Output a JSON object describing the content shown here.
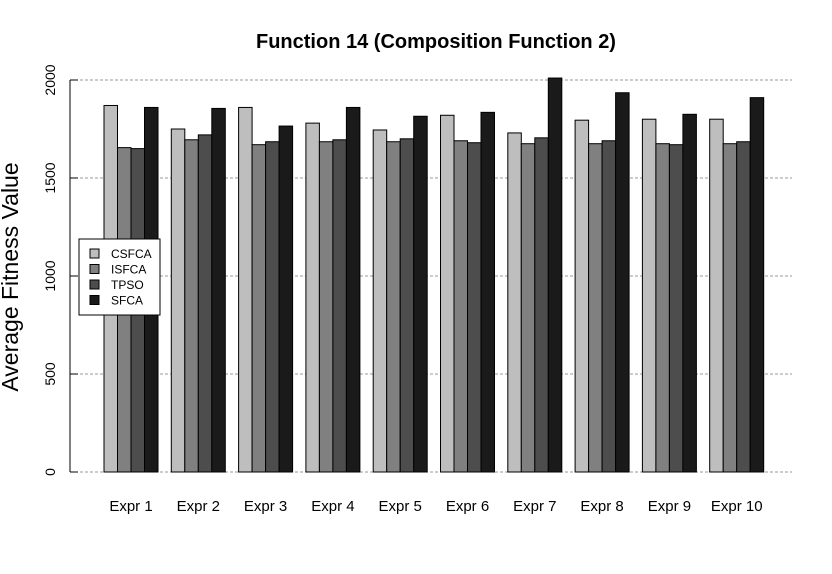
{
  "chart_data": {
    "type": "bar",
    "title": "Function 14 (Composition Function 2)",
    "xlabel": "",
    "ylabel": "Average Fitness Value",
    "ylim": [
      0,
      2000
    ],
    "yticks": [
      "0",
      "500",
      "1000",
      "1500",
      "2000"
    ],
    "grid": true,
    "legend_position": "left",
    "categories": [
      "Expr 1",
      "Expr 2",
      "Expr 3",
      "Expr 4",
      "Expr 5",
      "Expr 6",
      "Expr 7",
      "Expr 8",
      "Expr 9",
      "Expr 10"
    ],
    "series": [
      {
        "name": "CSFCA",
        "color": "#bebebe",
        "values": [
          1870,
          1750,
          1860,
          1780,
          1745,
          1820,
          1730,
          1795,
          1800,
          1800
        ]
      },
      {
        "name": "ISFCA",
        "color": "#808080",
        "values": [
          1655,
          1695,
          1670,
          1685,
          1685,
          1690,
          1675,
          1675,
          1675,
          1675
        ]
      },
      {
        "name": "TPSO",
        "color": "#4d4d4d",
        "values": [
          1650,
          1720,
          1685,
          1695,
          1700,
          1680,
          1705,
          1690,
          1670,
          1685
        ]
      },
      {
        "name": "SFCA",
        "color": "#1a1a1a",
        "values": [
          1860,
          1855,
          1765,
          1860,
          1815,
          1835,
          2010,
          1935,
          1825,
          1910
        ]
      }
    ]
  }
}
